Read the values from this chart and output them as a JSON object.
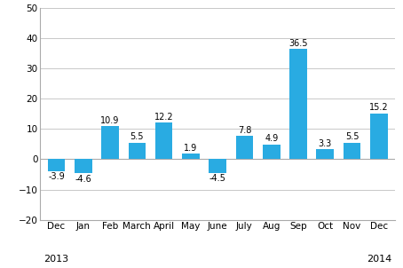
{
  "categories": [
    "Dec",
    "Jan",
    "Feb",
    "March",
    "April",
    "May",
    "June",
    "July",
    "Aug",
    "Sep",
    "Oct",
    "Nov",
    "Dec"
  ],
  "values": [
    -3.9,
    -4.6,
    10.9,
    5.5,
    12.2,
    1.9,
    -4.5,
    7.8,
    4.9,
    36.5,
    3.3,
    5.5,
    15.2
  ],
  "bar_color": "#29abe2",
  "ylim": [
    -20,
    50
  ],
  "yticks": [
    -20,
    -10,
    0,
    10,
    20,
    30,
    40,
    50
  ],
  "label_fontsize": 7.5,
  "tick_fontsize": 7.5,
  "year_fontsize": 8,
  "value_fontsize": 7,
  "background_color": "#ffffff",
  "grid_color": "#c8c8c8",
  "spine_color": "#aaaaaa"
}
